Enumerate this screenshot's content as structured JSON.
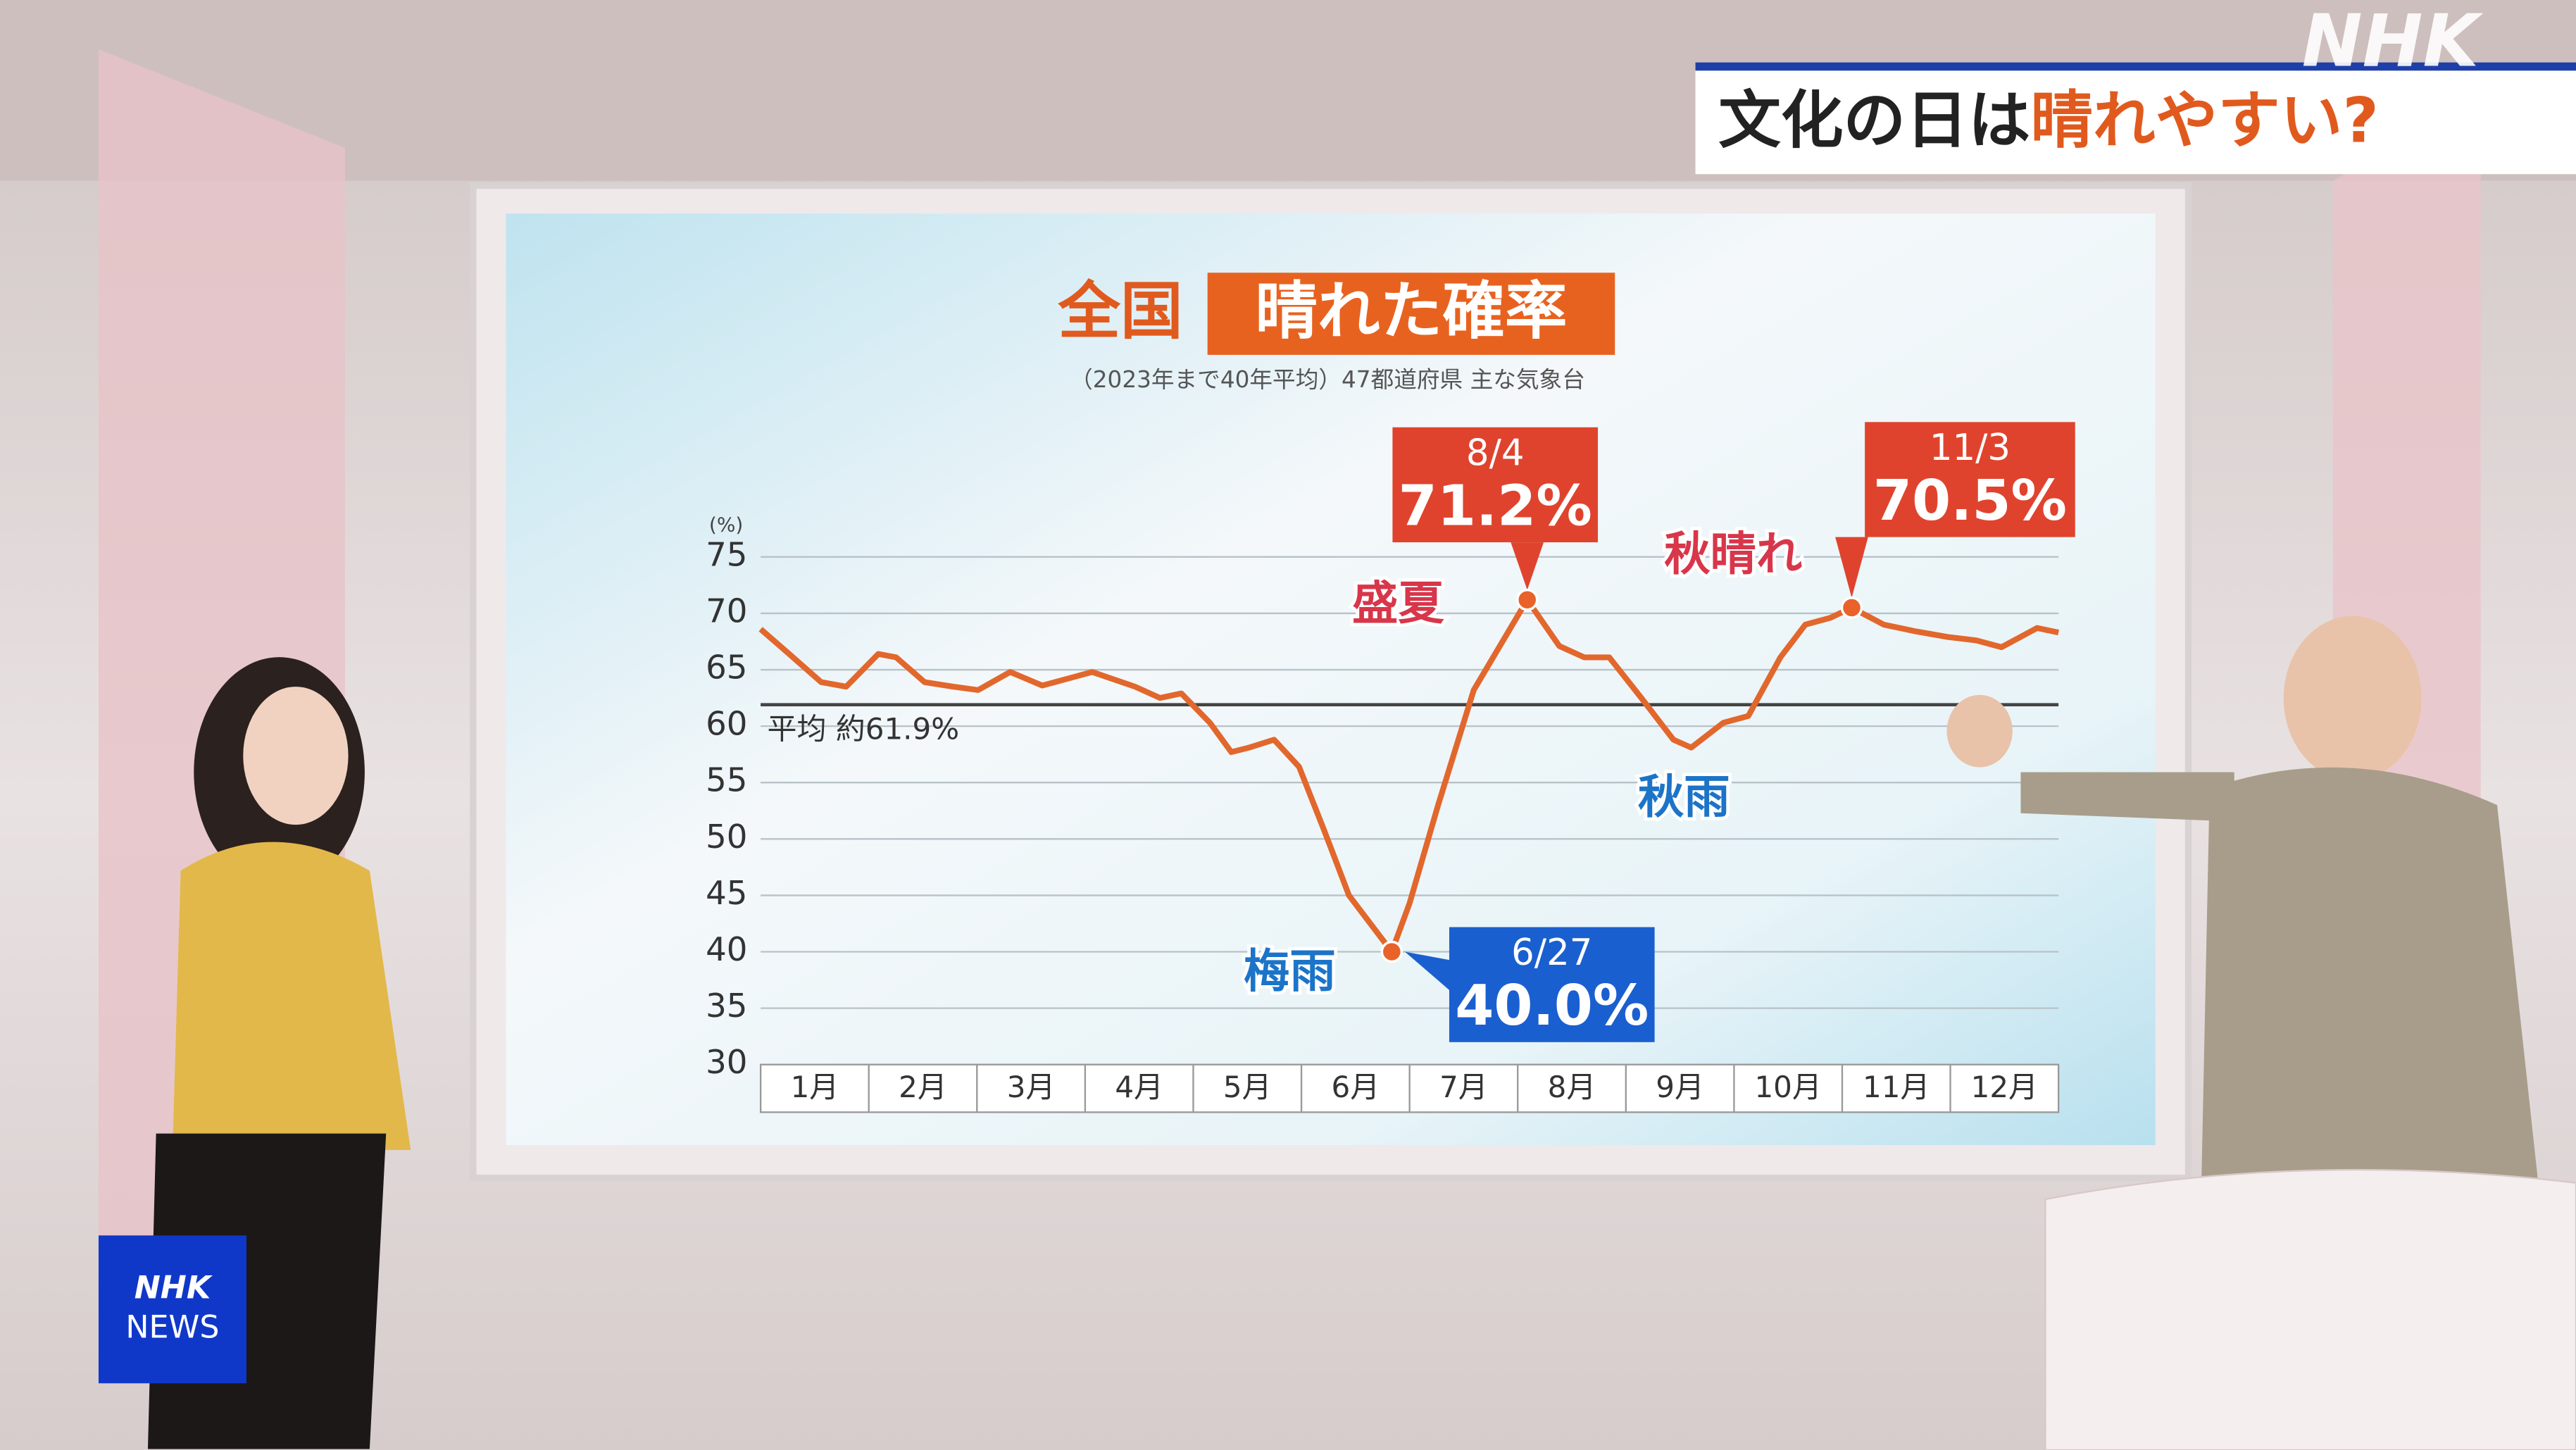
{
  "logo": "NHK",
  "badge": {
    "line1": "NHK",
    "line2": "NEWS"
  },
  "header": {
    "title_part1": "文化の日は",
    "title_part2": "晴れやすい?"
  },
  "chart_data": {
    "type": "line",
    "title_part1": "全国",
    "title_part2": "晴れた確率",
    "subtitle": "（2023年まで40年平均）47都道府県 主な気象台",
    "y_unit": "(%)",
    "categories": [
      "1月",
      "2月",
      "3月",
      "4月",
      "5月",
      "6月",
      "7月",
      "8月",
      "9月",
      "10月",
      "11月",
      "12月"
    ],
    "x": [
      1,
      9,
      18,
      25,
      34,
      39,
      47,
      55,
      62,
      71,
      80,
      94,
      106,
      113,
      119,
      127,
      133,
      138,
      145,
      152,
      159,
      166,
      178,
      183,
      191,
      201,
      216,
      225,
      232,
      239,
      248,
      257,
      262,
      271,
      278,
      287,
      294,
      301,
      307,
      316,
      325,
      334,
      342,
      349,
      359,
      365
    ],
    "xlim": [
      1,
      365
    ],
    "series": [
      {
        "color": "#e2672c",
        "values": [
          68.6,
          66.4,
          63.9,
          63.5,
          66.4,
          66.1,
          63.9,
          63.5,
          63.2,
          64.8,
          63.6,
          64.8,
          63.5,
          62.5,
          62.9,
          60.3,
          57.7,
          58.1,
          58.8,
          56.4,
          50.8,
          45.0,
          40.0,
          44.3,
          53.0,
          63.2,
          71.2,
          67.1,
          66.1,
          66.1,
          62.5,
          58.8,
          58.1,
          60.3,
          60.9,
          66.1,
          69.0,
          69.6,
          70.5,
          69.0,
          68.4,
          67.9,
          67.6,
          67.0,
          68.7,
          68.3
        ]
      }
    ],
    "ylim": [
      30,
      75
    ],
    "yticks": [
      30,
      35,
      40,
      45,
      50,
      55,
      60,
      65,
      70,
      75
    ],
    "grid": true,
    "average": {
      "value": 61.9,
      "label": "平均 約61.9%",
      "color": "#444444"
    },
    "highlights": [
      {
        "date": "8/4",
        "x": 216,
        "value": 71.2,
        "value_label": "71.2%",
        "color": "#e0432d"
      },
      {
        "date": "11/3",
        "x": 307,
        "value": 70.5,
        "value_label": "70.5%",
        "color": "#e0432d"
      },
      {
        "date": "6/27",
        "x": 178,
        "value": 40.0,
        "value_label": "40.0%",
        "color": "#1a5fd0"
      }
    ],
    "annotations": [
      {
        "text": "盛夏",
        "color": "#d8364a"
      },
      {
        "text": "秋晴れ",
        "color": "#d8364a"
      },
      {
        "text": "梅雨",
        "color": "#1c74c8"
      },
      {
        "text": "秋雨",
        "color": "#1c74c8"
      }
    ]
  }
}
